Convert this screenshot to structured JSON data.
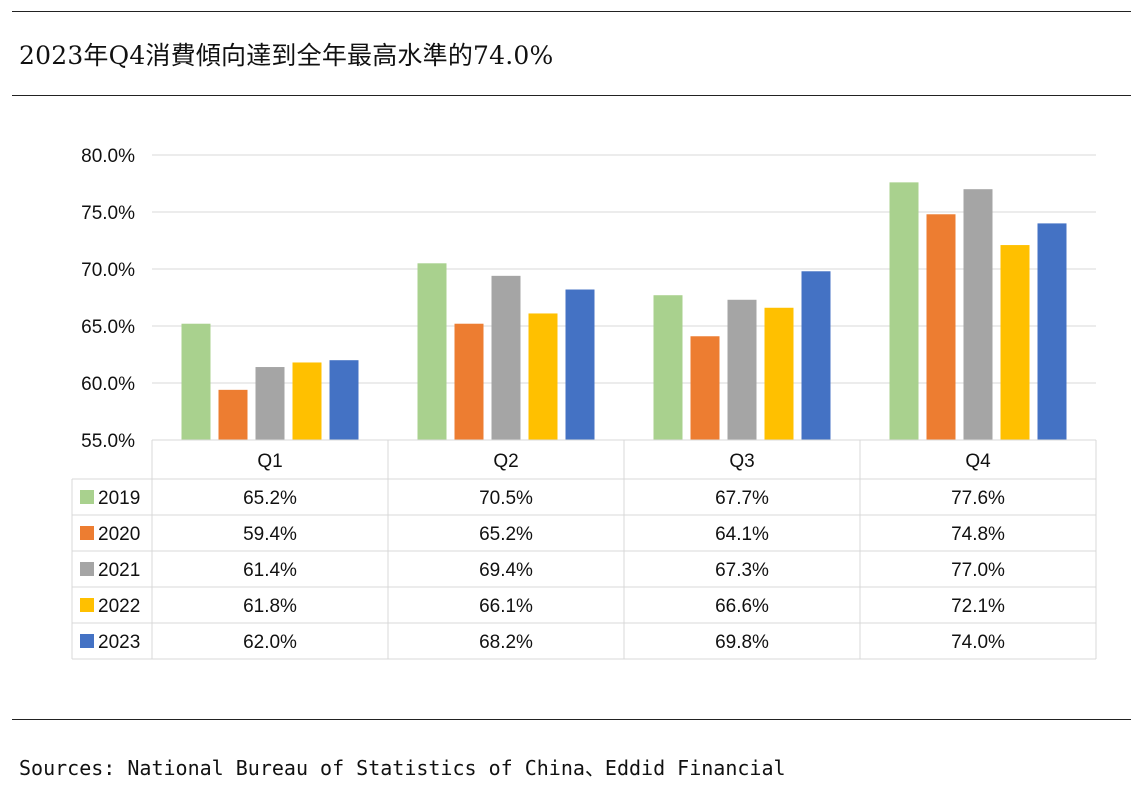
{
  "header": {
    "title": "2023年Q4消費傾向達到全年最高水準的74.0%"
  },
  "footer": {
    "source": "Sources: National Bureau of Statistics of China、Eddid Financial"
  },
  "chart_data": {
    "type": "bar",
    "title": "",
    "xlabel": "",
    "ylabel": "",
    "categories": [
      "Q1",
      "Q2",
      "Q3",
      "Q4"
    ],
    "ylim": [
      55.0,
      80.0
    ],
    "yticks": [
      "80.0%",
      "75.0%",
      "70.0%",
      "65.0%",
      "60.0%",
      "55.0%"
    ],
    "ytick_values": [
      80,
      75,
      70,
      65,
      60,
      55
    ],
    "grid": true,
    "legend": "data-table",
    "series": [
      {
        "name": "2019",
        "color": "#A9D18E",
        "values": [
          65.2,
          70.5,
          67.7,
          77.6
        ],
        "labels": [
          "65.2%",
          "70.5%",
          "67.7%",
          "77.6%"
        ]
      },
      {
        "name": "2020",
        "color": "#ED7D31",
        "values": [
          59.4,
          65.2,
          64.1,
          74.8
        ],
        "labels": [
          "59.4%",
          "65.2%",
          "64.1%",
          "74.8%"
        ]
      },
      {
        "name": "2021",
        "color": "#A5A5A5",
        "values": [
          61.4,
          69.4,
          67.3,
          77.0
        ],
        "labels": [
          "61.4%",
          "69.4%",
          "67.3%",
          "77.0%"
        ]
      },
      {
        "name": "2022",
        "color": "#FFC000",
        "values": [
          61.8,
          66.1,
          66.6,
          72.1
        ],
        "labels": [
          "61.8%",
          "66.1%",
          "66.6%",
          "72.1%"
        ]
      },
      {
        "name": "2023",
        "color": "#4472C4",
        "values": [
          62.0,
          68.2,
          69.8,
          74.0
        ],
        "labels": [
          "62.0%",
          "68.2%",
          "69.8%",
          "74.0%"
        ]
      }
    ]
  }
}
